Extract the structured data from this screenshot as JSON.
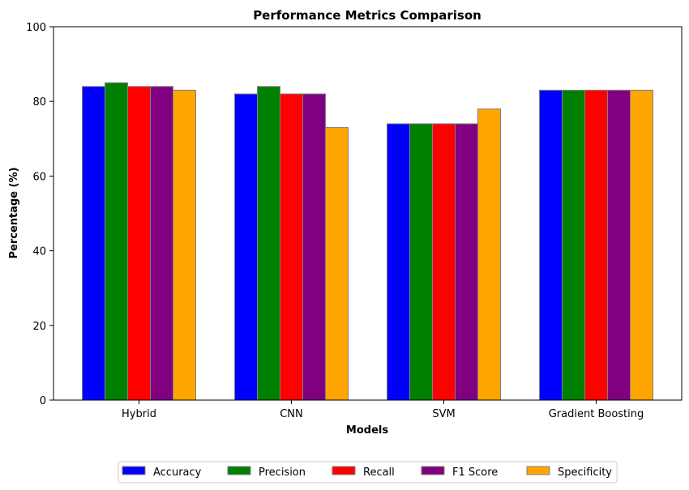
{
  "chart_data": {
    "type": "bar",
    "title": "Performance Metrics Comparison",
    "xlabel": "Models",
    "ylabel": "Percentage (%)",
    "categories": [
      "Hybrid",
      "CNN",
      "SVM",
      "Gradient Boosting"
    ],
    "ylim": [
      0,
      100
    ],
    "yticks": [
      0,
      20,
      40,
      60,
      80,
      100
    ],
    "grid": false,
    "legend_position": "bottom",
    "series": [
      {
        "name": "Accuracy",
        "color": "#0000ff",
        "values": [
          84,
          82,
          74,
          83
        ]
      },
      {
        "name": "Precision",
        "color": "#008000",
        "values": [
          85,
          84,
          74,
          83
        ]
      },
      {
        "name": "Recall",
        "color": "#ff0000",
        "values": [
          84,
          82,
          74,
          83
        ]
      },
      {
        "name": "F1 Score",
        "color": "#800080",
        "values": [
          84,
          82,
          74,
          83
        ]
      },
      {
        "name": "Specificity",
        "color": "#ffa500",
        "values": [
          83,
          73,
          78,
          83
        ]
      }
    ],
    "bar_edge_color": "#808080"
  }
}
